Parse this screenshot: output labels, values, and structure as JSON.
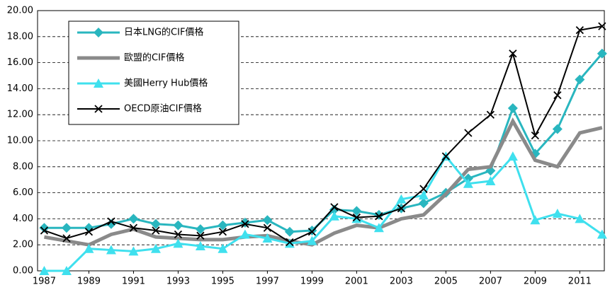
{
  "chart_data": {
    "type": "line",
    "x": [
      1987,
      1988,
      1989,
      1990,
      1991,
      1992,
      1993,
      1994,
      1995,
      1996,
      1997,
      1998,
      1999,
      2000,
      2001,
      2002,
      2003,
      2004,
      2005,
      2006,
      2007,
      2008,
      2009,
      2010,
      2011,
      2012
    ],
    "series": [
      {
        "name": "日本LNG的CIF價格",
        "color": "#29b6bf",
        "marker": "diamond",
        "values": [
          3.3,
          3.3,
          3.3,
          3.6,
          4.0,
          3.6,
          3.5,
          3.2,
          3.5,
          3.7,
          3.9,
          3.0,
          3.1,
          4.7,
          4.6,
          4.3,
          4.8,
          5.2,
          6.0,
          7.1,
          7.7,
          12.5,
          9.0,
          10.9,
          14.7,
          16.7
        ]
      },
      {
        "name": "歐盟的CIF價格",
        "color": "#8a8a8a",
        "marker": "none",
        "values": [
          2.6,
          2.3,
          2.0,
          2.8,
          3.2,
          2.6,
          2.5,
          2.4,
          2.4,
          2.6,
          2.7,
          2.3,
          2.0,
          2.9,
          3.5,
          3.3,
          4.0,
          4.3,
          5.9,
          7.8,
          8.0,
          11.5,
          8.5,
          8.0,
          10.6,
          11.0
        ]
      },
      {
        "name": "美國Herry Hub價格",
        "color": "#3fe0ee",
        "marker": "triangle",
        "values": [
          0.0,
          0.0,
          1.7,
          1.6,
          1.5,
          1.7,
          2.1,
          1.9,
          1.7,
          2.8,
          2.5,
          2.1,
          2.3,
          4.2,
          4.0,
          3.3,
          5.5,
          5.8,
          8.8,
          6.7,
          6.9,
          8.8,
          3.9,
          4.4,
          4.0,
          2.8
        ]
      },
      {
        "name": "OECD原油CIF價格",
        "color": "#000000",
        "marker": "x",
        "values": [
          3.1,
          2.5,
          3.0,
          3.8,
          3.3,
          3.1,
          2.8,
          2.7,
          3.0,
          3.6,
          3.3,
          2.2,
          3.0,
          4.9,
          4.1,
          4.2,
          4.8,
          6.3,
          8.8,
          10.6,
          12.0,
          16.7,
          10.4,
          13.5,
          18.5,
          18.8
        ]
      }
    ],
    "xlim": [
      1986.7,
      2012.1
    ],
    "xticks": [
      1987,
      1989,
      1991,
      1993,
      1995,
      1997,
      1999,
      2001,
      2003,
      2005,
      2007,
      2009,
      2011
    ],
    "ylim": [
      0,
      20
    ],
    "yticks": [
      {
        "value": 0,
        "label": "0.00"
      },
      {
        "value": 2,
        "label": "2.00"
      },
      {
        "value": 4,
        "label": "4.00"
      },
      {
        "value": 6,
        "label": "6.00"
      },
      {
        "value": 8,
        "label": "8.00"
      },
      {
        "value": 10,
        "label": "10.00"
      },
      {
        "value": 12,
        "label": "12.00"
      },
      {
        "value": 14,
        "label": "14.00"
      },
      {
        "value": 16,
        "label": "16.00"
      },
      {
        "value": 18,
        "label": "18.00"
      },
      {
        "value": 20,
        "label": "20.00"
      }
    ],
    "grid": true,
    "legend": "upper left"
  }
}
